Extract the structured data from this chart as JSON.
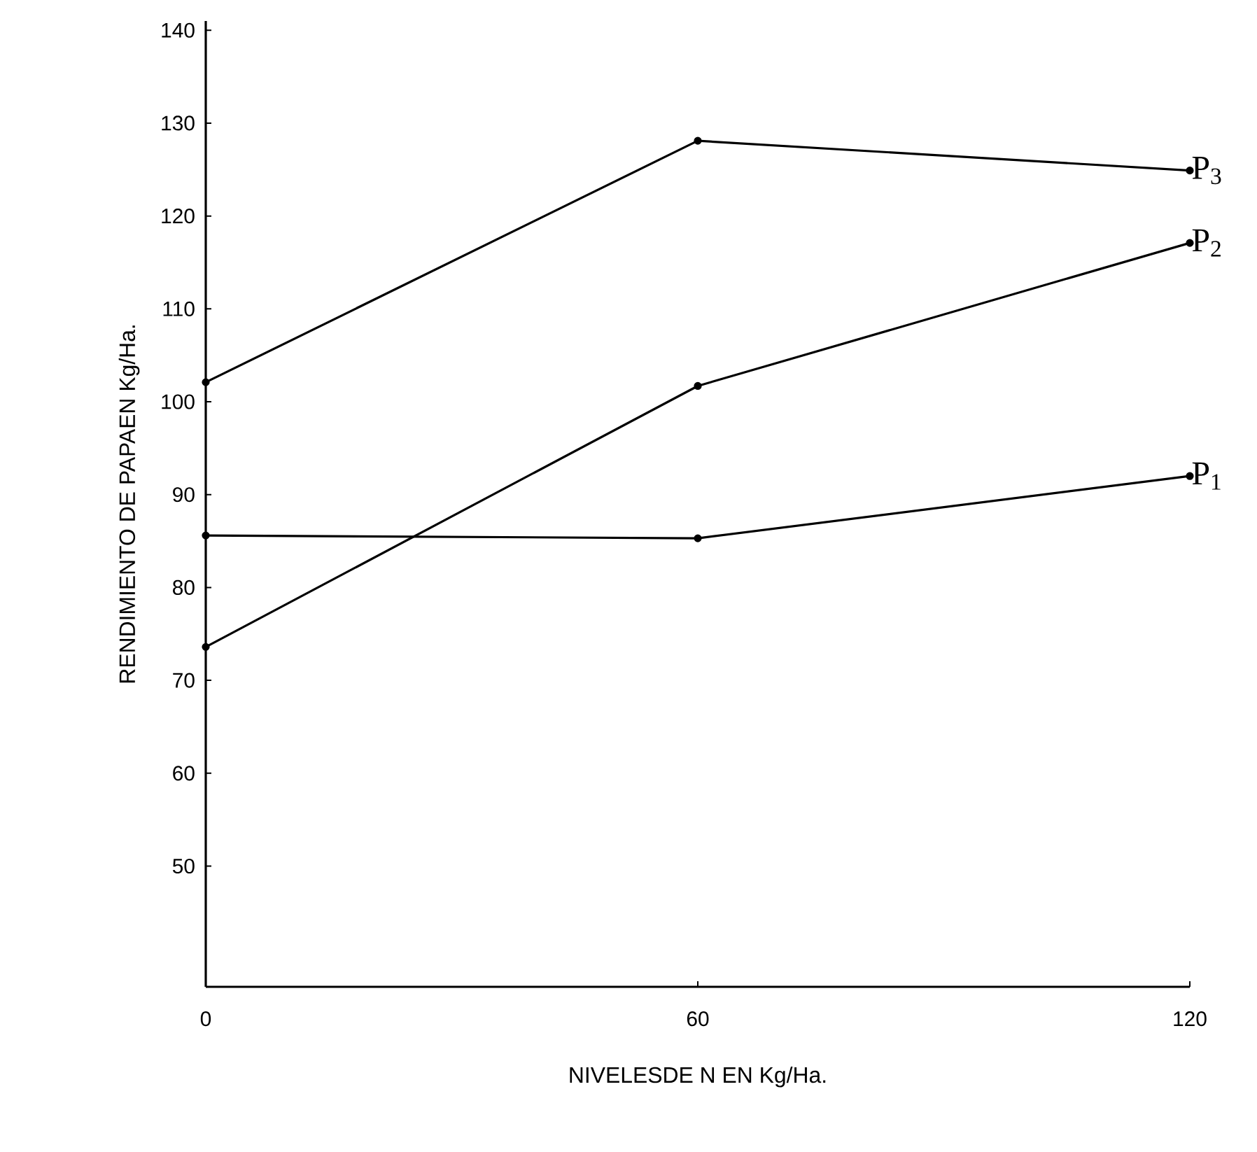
{
  "chart_data": {
    "type": "line",
    "xlabel": "NIVELESDE N EN  Kg/Ha.",
    "ylabel": "RENDIMIENTO DE PAPAEN  Kg/Ha.",
    "x": [
      0,
      60,
      120
    ],
    "xlim": [
      0,
      120
    ],
    "xticks": [
      0,
      60,
      120
    ],
    "ylim": [
      37,
      141
    ],
    "yticks": [
      50,
      60,
      70,
      80,
      90,
      100,
      110,
      120,
      130,
      140
    ],
    "marker": "circle",
    "line_style": "solid",
    "grid": false,
    "legend": false,
    "series": [
      {
        "name": "P$_{1}$",
        "color": "#000000",
        "values": [
          85.6,
          85.3,
          92.0
        ]
      },
      {
        "name": "P$_{2}$",
        "color": "#000000",
        "values": [
          73.6,
          101.7,
          117.1
        ]
      },
      {
        "name": "P$_{3}$",
        "color": "#000000",
        "values": [
          102.1,
          128.1,
          124.9
        ]
      }
    ]
  }
}
